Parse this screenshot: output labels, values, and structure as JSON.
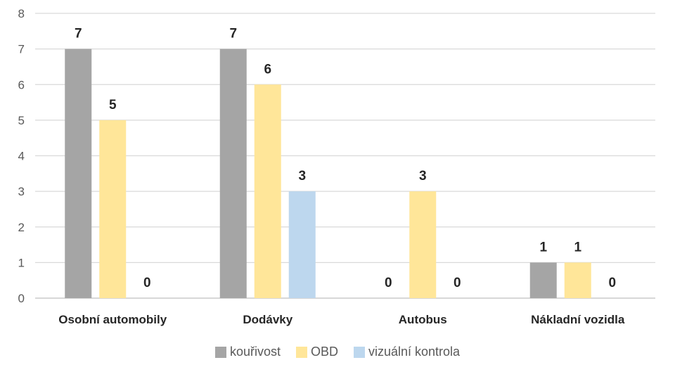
{
  "chart_data": {
    "type": "bar",
    "categories": [
      "Osobní automobily",
      "Dodávky",
      "Autobus",
      "Nákladní vozidla"
    ],
    "series": [
      {
        "name": "kouřivost",
        "values": [
          7,
          7,
          0,
          1
        ],
        "color": "#a5a5a5"
      },
      {
        "name": "OBD",
        "values": [
          5,
          6,
          3,
          1
        ],
        "color": "#ffe699"
      },
      {
        "name": "vizuální kontrola",
        "values": [
          0,
          3,
          0,
          0
        ],
        "color": "#bdd7ee"
      }
    ],
    "ylim": [
      0,
      8
    ],
    "yticks": [
      "0",
      "1",
      "2",
      "3",
      "4",
      "5",
      "6",
      "7",
      "8"
    ],
    "grid": true,
    "data_labels": true,
    "legend_position": "bottom"
  }
}
